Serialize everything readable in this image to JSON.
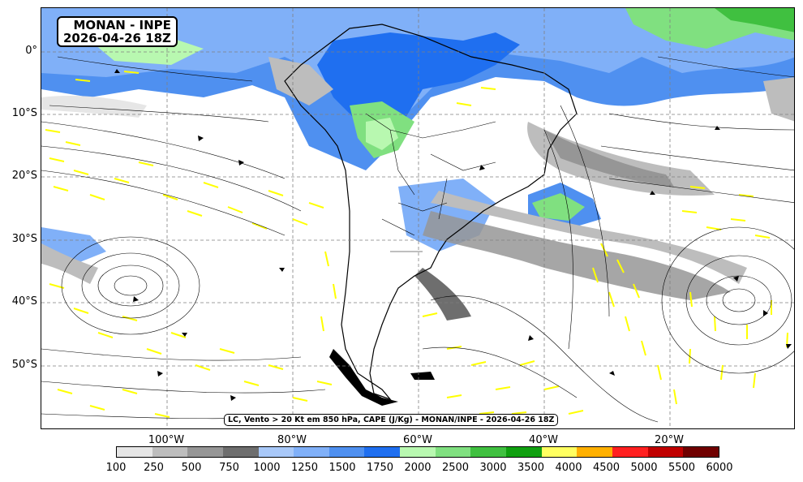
{
  "title": {
    "line1": "MONAN - INPE",
    "line2": "2026-04-26 18Z"
  },
  "caption": "LC, Vento > 20 Kt em 850 hPa, CAPE (J/Kg) - MONAN/INPE - 2026-04-26 18Z",
  "lat_labels": [
    "0°",
    "10°S",
    "20°S",
    "30°S",
    "40°S",
    "50°S"
  ],
  "lon_labels": [
    "100°W",
    "80°W",
    "60°W",
    "40°W",
    "20°W"
  ],
  "colorbar": {
    "labels": [
      "100",
      "250",
      "500",
      "750",
      "1000",
      "1250",
      "1500",
      "1750",
      "2000",
      "2500",
      "3000",
      "3500",
      "4000",
      "4500",
      "5000",
      "5500",
      "6000"
    ],
    "colors": [
      "#e6e6e6",
      "#bdbdbd",
      "#969696",
      "#6e6e6e",
      "#a8c8f8",
      "#80b0f8",
      "#4f90f0",
      "#1f6ff0",
      "#b8f8b0",
      "#80e080",
      "#40c040",
      "#10a010",
      "#ffff60",
      "#ffb000",
      "#ff2020",
      "#c00000",
      "#700000"
    ]
  },
  "colors": {
    "wind_vectors": "#ffff00",
    "streamlines": "#000000",
    "coastline": "#000000",
    "grid": "#808080"
  }
}
